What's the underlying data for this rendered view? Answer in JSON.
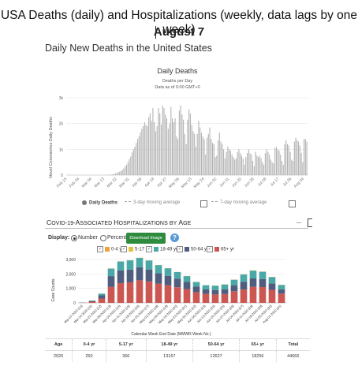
{
  "header": {
    "title": "USA Deaths (daily) and Hospitalizations (weekly, data lags by one week)",
    "date": "August 7",
    "section_title": "Daily New Deaths in the United States"
  },
  "deaths_chart": {
    "title": "Daily Deaths",
    "subtitle_1": "Deaths per Day",
    "subtitle_2": "Data as of 0:00 GMT+0",
    "ylabel": "Novel Coronavirus Daily Deaths",
    "legend": {
      "daily": "Daily Deaths",
      "avg3": "3-day moving average",
      "avg7": "7-day moving average"
    },
    "colors": {
      "bar": "#b0b0b0",
      "grid": "#e6e6e6",
      "axis": "#ccc"
    }
  },
  "chart_data": [
    {
      "type": "bar",
      "title": "Daily Deaths",
      "ylabel": "Novel Coronavirus Daily Deaths",
      "ylim": [
        0,
        3000
      ],
      "yticks": [
        "0",
        "1k",
        "2k",
        "3k"
      ],
      "x_tick_labels": [
        "Feb 15",
        "Feb 24",
        "Mar 04",
        "Mar 13",
        "Mar 22",
        "Mar 31",
        "Apr 09",
        "Apr 18",
        "Apr 27",
        "May 06",
        "May 15",
        "May 24",
        "Jun 02",
        "Jun 11",
        "Jun 20",
        "Jun 29",
        "Jul 08",
        "Jul 17",
        "Jul 26",
        "Aug 04"
      ],
      "start_label": "Feb 15",
      "values": [
        0,
        0,
        0,
        0,
        0,
        0,
        0,
        0,
        0,
        0,
        0,
        0,
        0,
        0,
        0,
        0,
        0,
        0,
        0,
        0,
        0,
        0,
        0,
        0,
        0,
        0,
        2,
        2,
        5,
        8,
        10,
        15,
        20,
        30,
        45,
        60,
        80,
        110,
        130,
        160,
        210,
        260,
        340,
        400,
        500,
        620,
        720,
        880,
        1000,
        1100,
        1250,
        1400,
        1500,
        1650,
        1800,
        1900,
        2050,
        1950,
        1900,
        2250,
        2400,
        2100,
        2600,
        2050,
        1700,
        1900,
        2600,
        2400,
        1950,
        2700,
        2600,
        2350,
        2200,
        1800,
        2000,
        2650,
        2200,
        2050,
        2200,
        1500,
        1400,
        2500,
        2700,
        2350,
        2150,
        1600,
        1200,
        2150,
        2550,
        2400,
        1950,
        1700,
        1600,
        1100,
        1600,
        2100,
        1850,
        1650,
        1500,
        1400,
        800,
        1450,
        1600,
        1850,
        1400,
        1250,
        1200,
        700,
        750,
        1350,
        1650,
        1300,
        1200,
        1000,
        650,
        900,
        1100,
        1000,
        950,
        800,
        700,
        600,
        650,
        900,
        1000,
        850,
        750,
        650,
        400,
        700,
        850,
        1000,
        850,
        800,
        550,
        350,
        900,
        750,
        700,
        750,
        650,
        500,
        400,
        850,
        1000,
        900,
        800,
        600,
        500,
        450,
        1050,
        1100,
        1000,
        950,
        800,
        550,
        400,
        1200,
        1350,
        1200,
        1150,
        900,
        600,
        550,
        1300,
        1450,
        1350,
        1300,
        1150,
        850,
        500,
        1400,
        1400,
        1300
      ]
    },
    {
      "type": "bar",
      "title": "COVID-19-Associated Hospitalizations by Age",
      "xlabel": "Calendar Week End Date (MMWR Week No.)",
      "ylabel": "Case Counts",
      "ylim": [
        0,
        3000
      ],
      "yticks": [
        "0",
        "1,000",
        "2,000",
        "3,000"
      ],
      "categories": [
        "Mar-07-2020 (10)",
        "Mar-14-2020 (11)",
        "Mar-21-2020 (12)",
        "Mar-28-2020 (13)",
        "Apr-04-2020 (14)",
        "Apr-11-2020 (15)",
        "Apr-18-2020 (16)",
        "Apr-25-2020 (17)",
        "May-02-2020 (18)",
        "May-09-2020 (19)",
        "May-16-2020 (20)",
        "May-23-2020 (21)",
        "May-30-2020 (22)",
        "Jun-06-2020 (23)",
        "Jun-13-2020 (24)",
        "Jun-20-2020 (25)",
        "Jun-27-2020 (26)",
        "Jul-04-2020 (27)",
        "Jul-11-2020 (28)",
        "Jul-18-2020 (29)",
        "Jul-25-2020 (30)",
        "Aug-01-2020 (31)"
      ],
      "series": [
        {
          "name": "0-4 yr",
          "color": "#e8a33d",
          "values": [
            0,
            2,
            3,
            5,
            6,
            6,
            6,
            6,
            6,
            5,
            5,
            5,
            5,
            5,
            6,
            6,
            6,
            7,
            8,
            8,
            8,
            7
          ]
        },
        {
          "name": "5-17 yr",
          "color": "#e1c040",
          "values": [
            0,
            1,
            2,
            4,
            5,
            5,
            5,
            5,
            5,
            5,
            4,
            4,
            4,
            4,
            5,
            5,
            6,
            7,
            8,
            8,
            7,
            6
          ]
        },
        {
          "name": "18-49 yr",
          "color": "#4aa8a6",
          "values": [
            5,
            30,
            120,
            520,
            620,
            640,
            650,
            620,
            560,
            520,
            470,
            400,
            320,
            290,
            300,
            330,
            380,
            500,
            540,
            500,
            430,
            300
          ]
        },
        {
          "name": "50-64 yr",
          "color": "#4f5d7e",
          "values": [
            8,
            50,
            220,
            750,
            880,
            880,
            900,
            830,
            720,
            660,
            580,
            500,
            380,
            310,
            310,
            330,
            420,
            540,
            580,
            560,
            450,
            300
          ]
        },
        {
          "name": "65+ yr",
          "color": "#cc5752",
          "values": [
            10,
            80,
            300,
            1100,
            1360,
            1420,
            1560,
            1480,
            1330,
            1210,
            1080,
            950,
            740,
            620,
            580,
            610,
            800,
            920,
            1110,
            1090,
            900,
            640
          ]
        }
      ]
    }
  ],
  "hosp_panel": {
    "title_first": "C",
    "title_smallcaps": "OVID-19-",
    "title_a": "A",
    "title_a_rest": "SSOCIATED ",
    "title_h": "H",
    "title_h_rest": "OSPITALIZATIONS BY ",
    "title_age": "A",
    "title_age_rest": "GE",
    "minimize": "_",
    "display_label": "Display:",
    "opt_number": "Number",
    "opt_percent": "Percent",
    "download_label": "Download Image",
    "help": "?",
    "xlabel": "Calendar Week End Date (MMWR Week No.)",
    "ylabel": "Case Counts",
    "table": {
      "headers": [
        "Age",
        "0-4 yr",
        "5-17 yr",
        "18-49 yr",
        "50-64 yr",
        "65+ yr",
        "Total"
      ],
      "row": [
        "2020",
        "250",
        "366",
        "13167",
        "12627",
        "18256",
        "44666"
      ]
    }
  }
}
